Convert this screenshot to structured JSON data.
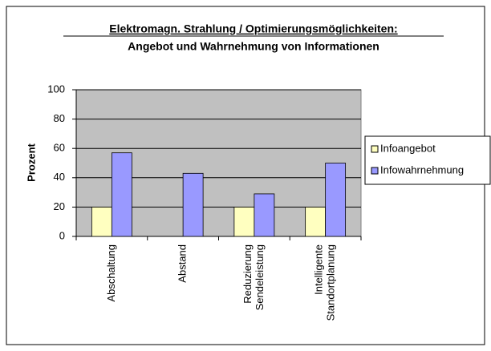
{
  "chart_data": {
    "type": "bar",
    "title": [
      "Elektromagn. Strahlung / Optimierungsmöglichkeiten:",
      "Angebot und Wahrnehmung von Informationen"
    ],
    "y_label": "Prozent",
    "categories": [
      [
        "Abschaltung"
      ],
      [
        "Abstand"
      ],
      [
        "Reduzierung",
        "Sendeleistung"
      ],
      [
        "Intelligente",
        "Standortplanung"
      ]
    ],
    "series": [
      {
        "name": "Infoangebot",
        "color": "#ffffc0",
        "values": [
          20,
          0,
          20,
          20
        ]
      },
      {
        "name": "Infowahrnehmung",
        "color": "#9999ff",
        "values": [
          57,
          43,
          29,
          50
        ]
      }
    ],
    "ylim": [
      0,
      100
    ],
    "yticks": [
      0,
      20,
      40,
      60,
      80,
      100
    ],
    "grid": true,
    "legend": "right"
  }
}
